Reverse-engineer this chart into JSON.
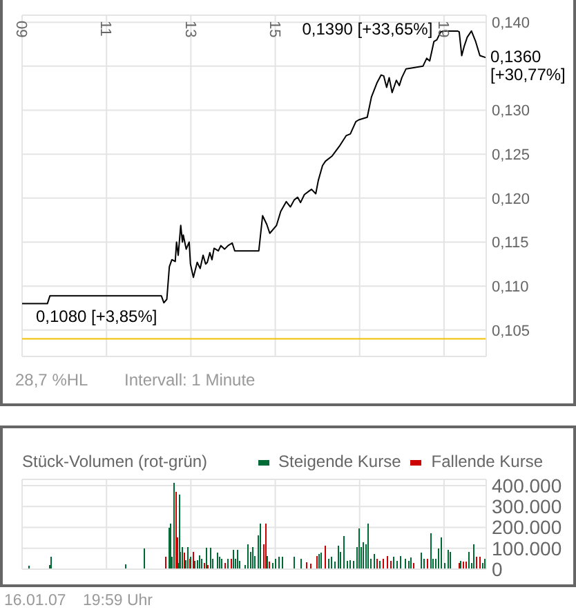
{
  "chart_data": [
    {
      "type": "line",
      "x": [
        9.0,
        9.6,
        9.66,
        12.3,
        12.36,
        12.43,
        12.49,
        12.55,
        12.63,
        12.66,
        12.7,
        12.76,
        12.8,
        12.82,
        12.89,
        12.96,
        12.99,
        13.06,
        13.15,
        13.22,
        13.29,
        13.35,
        13.39,
        13.45,
        13.5,
        13.55,
        13.65,
        13.71,
        13.8,
        13.88,
        13.98,
        14.04,
        14.61,
        14.7,
        14.8,
        14.87,
        15.03,
        15.13,
        15.26,
        15.36,
        15.45,
        15.53,
        15.6,
        15.69,
        15.8,
        15.86,
        15.96,
        16.02,
        16.12,
        16.19,
        16.35,
        16.52,
        16.68,
        16.78,
        16.91,
        16.98,
        17.18,
        17.28,
        17.41,
        17.51,
        17.57,
        17.64,
        17.7,
        17.77,
        17.87,
        17.94,
        18.0,
        18.1,
        18.23,
        18.5,
        18.59,
        18.66,
        18.76,
        18.83,
        18.92,
        18.99,
        19.32,
        19.36,
        19.42,
        19.48,
        19.55,
        19.65,
        19.75,
        19.85,
        19.98
      ],
      "values": [
        0.108,
        0.108,
        0.1089,
        0.1089,
        0.1081,
        0.1085,
        0.1122,
        0.113,
        0.1128,
        0.115,
        0.1135,
        0.1169,
        0.115,
        0.1158,
        0.1142,
        0.115,
        0.1125,
        0.111,
        0.1127,
        0.112,
        0.1135,
        0.1125,
        0.1127,
        0.1138,
        0.113,
        0.1143,
        0.114,
        0.1146,
        0.1142,
        0.1146,
        0.1149,
        0.114,
        0.114,
        0.118,
        0.117,
        0.116,
        0.1169,
        0.1185,
        0.1196,
        0.119,
        0.1198,
        0.1201,
        0.1195,
        0.1204,
        0.1208,
        0.121,
        0.1205,
        0.122,
        0.1237,
        0.1242,
        0.1248,
        0.1259,
        0.1271,
        0.1273,
        0.1287,
        0.1289,
        0.1292,
        0.1315,
        0.1331,
        0.134,
        0.1339,
        0.1326,
        0.1337,
        0.132,
        0.1334,
        0.1328,
        0.1337,
        0.1347,
        0.1348,
        0.135,
        0.1359,
        0.1356,
        0.1378,
        0.138,
        0.1389,
        0.139,
        0.139,
        0.1389,
        0.1362,
        0.1373,
        0.1383,
        0.139,
        0.1378,
        0.1362,
        0.136
      ],
      "color": "#000000",
      "xlim": [
        9,
        20
      ],
      "xticks": [
        {
          "value": 9,
          "label": "09"
        },
        11,
        13,
        15,
        {
          "value": 17,
          "label": null
        },
        19
      ],
      "ylim": [
        0.102,
        0.1408
      ],
      "yticks": [
        {
          "value": 0.105,
          "label": "0,105"
        },
        {
          "value": 0.11,
          "label": "0,110"
        },
        {
          "value": 0.115,
          "label": "0,115"
        },
        {
          "value": 0.12,
          "label": "0,120"
        },
        {
          "value": 0.125,
          "label": "0,125"
        },
        {
          "value": 0.13,
          "label": "0,130"
        },
        {
          "value": 0.135,
          "label": null
        },
        {
          "value": 0.14,
          "label": "0,140"
        }
      ],
      "grid": true,
      "ref_lines": [
        {
          "axis": "y",
          "value": 0.104,
          "color": "#f2c200"
        }
      ],
      "annotations": [
        {
          "text": "0,1390 [+33,65%]",
          "x": 18.99,
          "y": 0.139
        },
        {
          "text": "0,1080 [+3,85%]",
          "x": 9.0,
          "y": 0.108
        },
        {
          "text": "0,1360 [+30,77%]",
          "x": 19.98,
          "y": 0.136
        },
        "28,7 %HL",
        "Intervall: 1 Minute"
      ]
    },
    {
      "type": "bar",
      "title": "Stück-Volumen (rot-grün)",
      "series": [
        {
          "name": "Steigende Kurse",
          "color": "#006a35",
          "x": [
            9.17,
            9.66,
            9.7,
            11.46,
            11.9,
            12.5,
            12.53,
            12.56,
            12.6,
            12.7,
            12.73,
            12.76,
            12.81,
            12.88,
            12.93,
            13.0,
            13.1,
            13.16,
            13.22,
            13.26,
            13.37,
            13.48,
            13.53,
            13.64,
            13.69,
            13.74,
            13.89,
            14.02,
            14.07,
            14.12,
            14.17,
            14.29,
            14.36,
            14.42,
            14.47,
            14.53,
            14.6,
            14.66,
            14.82,
            14.94,
            15.02,
            15.1,
            15.18,
            15.46,
            15.62,
            16.04,
            16.1,
            16.28,
            16.34,
            16.42,
            16.51,
            16.56,
            16.64,
            16.72,
            16.78,
            16.86,
            16.94,
            17.0,
            17.05,
            17.1,
            17.16,
            17.2,
            17.27,
            17.35,
            17.49,
            17.82,
            17.89,
            17.98,
            18.09,
            18.17,
            18.22,
            18.47,
            18.53,
            18.69,
            18.75,
            18.81,
            18.88,
            18.94,
            19.02,
            19.1,
            19.15,
            19.4,
            19.6,
            19.66,
            19.71,
            19.92,
            19.98
          ],
          "values": [
            17000,
            20000,
            58000,
            24000,
            100000,
            200000,
            218000,
            60000,
            413000,
            30000,
            356000,
            84000,
            107000,
            44000,
            107000,
            60000,
            40000,
            42000,
            67000,
            50000,
            102000,
            102000,
            50000,
            80000,
            60000,
            50000,
            50000,
            91000,
            50000,
            91000,
            40000,
            20000,
            118000,
            84000,
            107000,
            62000,
            162000,
            218000,
            62000,
            29000,
            51000,
            58000,
            58000,
            58000,
            51000,
            73000,
            78000,
            51000,
            58000,
            36000,
            111000,
            84000,
            160000,
            40000,
            44000,
            40000,
            107000,
            196000,
            107000,
            129000,
            118000,
            218000,
            51000,
            73000,
            40000,
            58000,
            40000,
            62000,
            51000,
            40000,
            56000,
            78000,
            51000,
            173000,
            51000,
            51000,
            100000,
            151000,
            29000,
            91000,
            84000,
            40000,
            84000,
            29000,
            118000,
            29000,
            51000
          ]
        },
        {
          "name": "Fallende Kurse",
          "color": "#cc0000",
          "x": [
            12.4,
            12.64,
            12.67,
            12.84,
            12.97,
            13.06,
            13.32,
            13.4,
            13.8,
            13.96,
            14.72,
            14.77,
            14.86,
            15.73,
            15.84,
            15.98,
            16.18,
            17.41,
            17.56,
            17.65,
            17.73,
            18.28,
            18.61,
            19.35,
            19.46,
            19.52,
            19.77,
            19.85
          ],
          "values": [
            58000,
            369000,
            151000,
            78000,
            51000,
            84000,
            30000,
            20000,
            30000,
            50000,
            118000,
            218000,
            36000,
            33000,
            27000,
            62000,
            111000,
            51000,
            51000,
            62000,
            40000,
            29000,
            51000,
            29000,
            36000,
            36000,
            58000,
            58000
          ]
        }
      ],
      "xlim": [
        9,
        20
      ],
      "xticks": [
        9,
        11,
        13,
        15,
        17,
        19
      ],
      "ylim": [
        0,
        430000
      ],
      "yticks": [
        0,
        {
          "value": 100000,
          "label": "100.000"
        },
        {
          "value": 200000,
          "label": "200.000"
        },
        {
          "value": 300000,
          "label": "300.000"
        },
        {
          "value": 400000,
          "label": "400.000"
        }
      ],
      "grid": true,
      "legend": "top right",
      "tick_labels": "y",
      "annotations": [
        "16.01.07",
        "19:59 Uhr"
      ]
    }
  ]
}
